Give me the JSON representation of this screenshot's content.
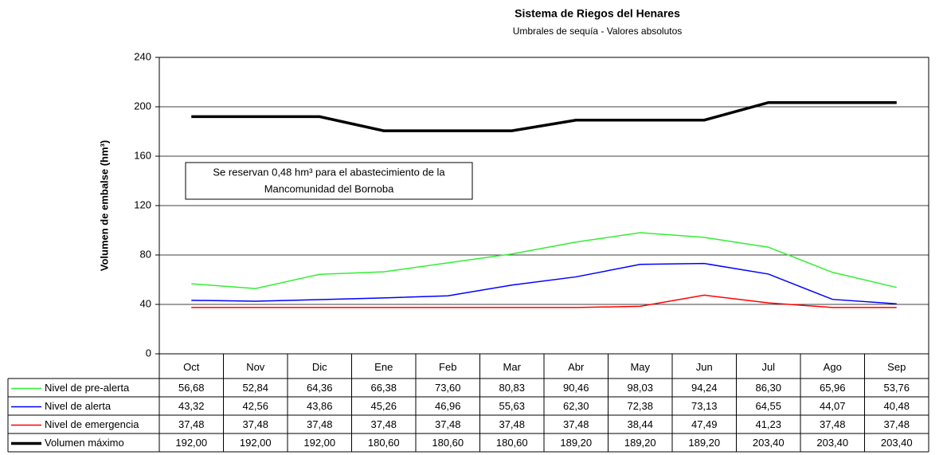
{
  "chart_data": {
    "type": "line",
    "title": "Sistema de Riegos del Henares",
    "subtitle": "Umbrales de sequía - Valores absolutos",
    "ylabel": "Volumen de embalse (hm³)",
    "annotation": [
      "Se reservan 0,48 hm³ para el abastecimiento de la",
      "Mancomunidad del Bornoba"
    ],
    "categories": [
      "Oct",
      "Nov",
      "Dic",
      "Ene",
      "Feb",
      "Mar",
      "Abr",
      "May",
      "Jun",
      "Jul",
      "Ago",
      "Sep"
    ],
    "ylim": [
      0,
      240
    ],
    "yticks": [
      0,
      40,
      80,
      120,
      160,
      200,
      240
    ],
    "grid": true,
    "series": [
      {
        "name": "Nivel de pre-alerta",
        "color": "#33ee33",
        "line_width": 1.5,
        "values": [
          56.68,
          52.84,
          64.36,
          66.38,
          73.6,
          80.83,
          90.46,
          98.03,
          94.24,
          86.3,
          65.96,
          53.76
        ],
        "value_labels": [
          "56,68",
          "52,84",
          "64,36",
          "66,38",
          "73,60",
          "80,83",
          "90,46",
          "98,03",
          "94,24",
          "86,30",
          "65,96",
          "53,76"
        ]
      },
      {
        "name": "Nivel de alerta",
        "color": "#0000ff",
        "line_width": 1.5,
        "values": [
          43.32,
          42.56,
          43.86,
          45.26,
          46.96,
          55.63,
          62.3,
          72.38,
          73.13,
          64.55,
          44.07,
          40.48
        ],
        "value_labels": [
          "43,32",
          "42,56",
          "43,86",
          "45,26",
          "46,96",
          "55,63",
          "62,30",
          "72,38",
          "73,13",
          "64,55",
          "44,07",
          "40,48"
        ]
      },
      {
        "name": "Nivel de emergencia",
        "color": "#ff0000",
        "line_width": 1.5,
        "values": [
          37.48,
          37.48,
          37.48,
          37.48,
          37.48,
          37.48,
          37.48,
          38.44,
          47.49,
          41.23,
          37.48,
          37.48
        ],
        "value_labels": [
          "37,48",
          "37,48",
          "37,48",
          "37,48",
          "37,48",
          "37,48",
          "37,48",
          "38,44",
          "47,49",
          "41,23",
          "37,48",
          "37,48"
        ]
      },
      {
        "name": "Volumen máximo",
        "color": "#000000",
        "line_width": 3.5,
        "values": [
          192.0,
          192.0,
          192.0,
          180.6,
          180.6,
          180.6,
          189.2,
          189.2,
          189.2,
          203.4,
          203.4,
          203.4
        ],
        "value_labels": [
          "192,00",
          "192,00",
          "192,00",
          "180,60",
          "180,60",
          "180,60",
          "189,20",
          "189,20",
          "189,20",
          "203,40",
          "203,40",
          "203,40"
        ]
      }
    ]
  }
}
